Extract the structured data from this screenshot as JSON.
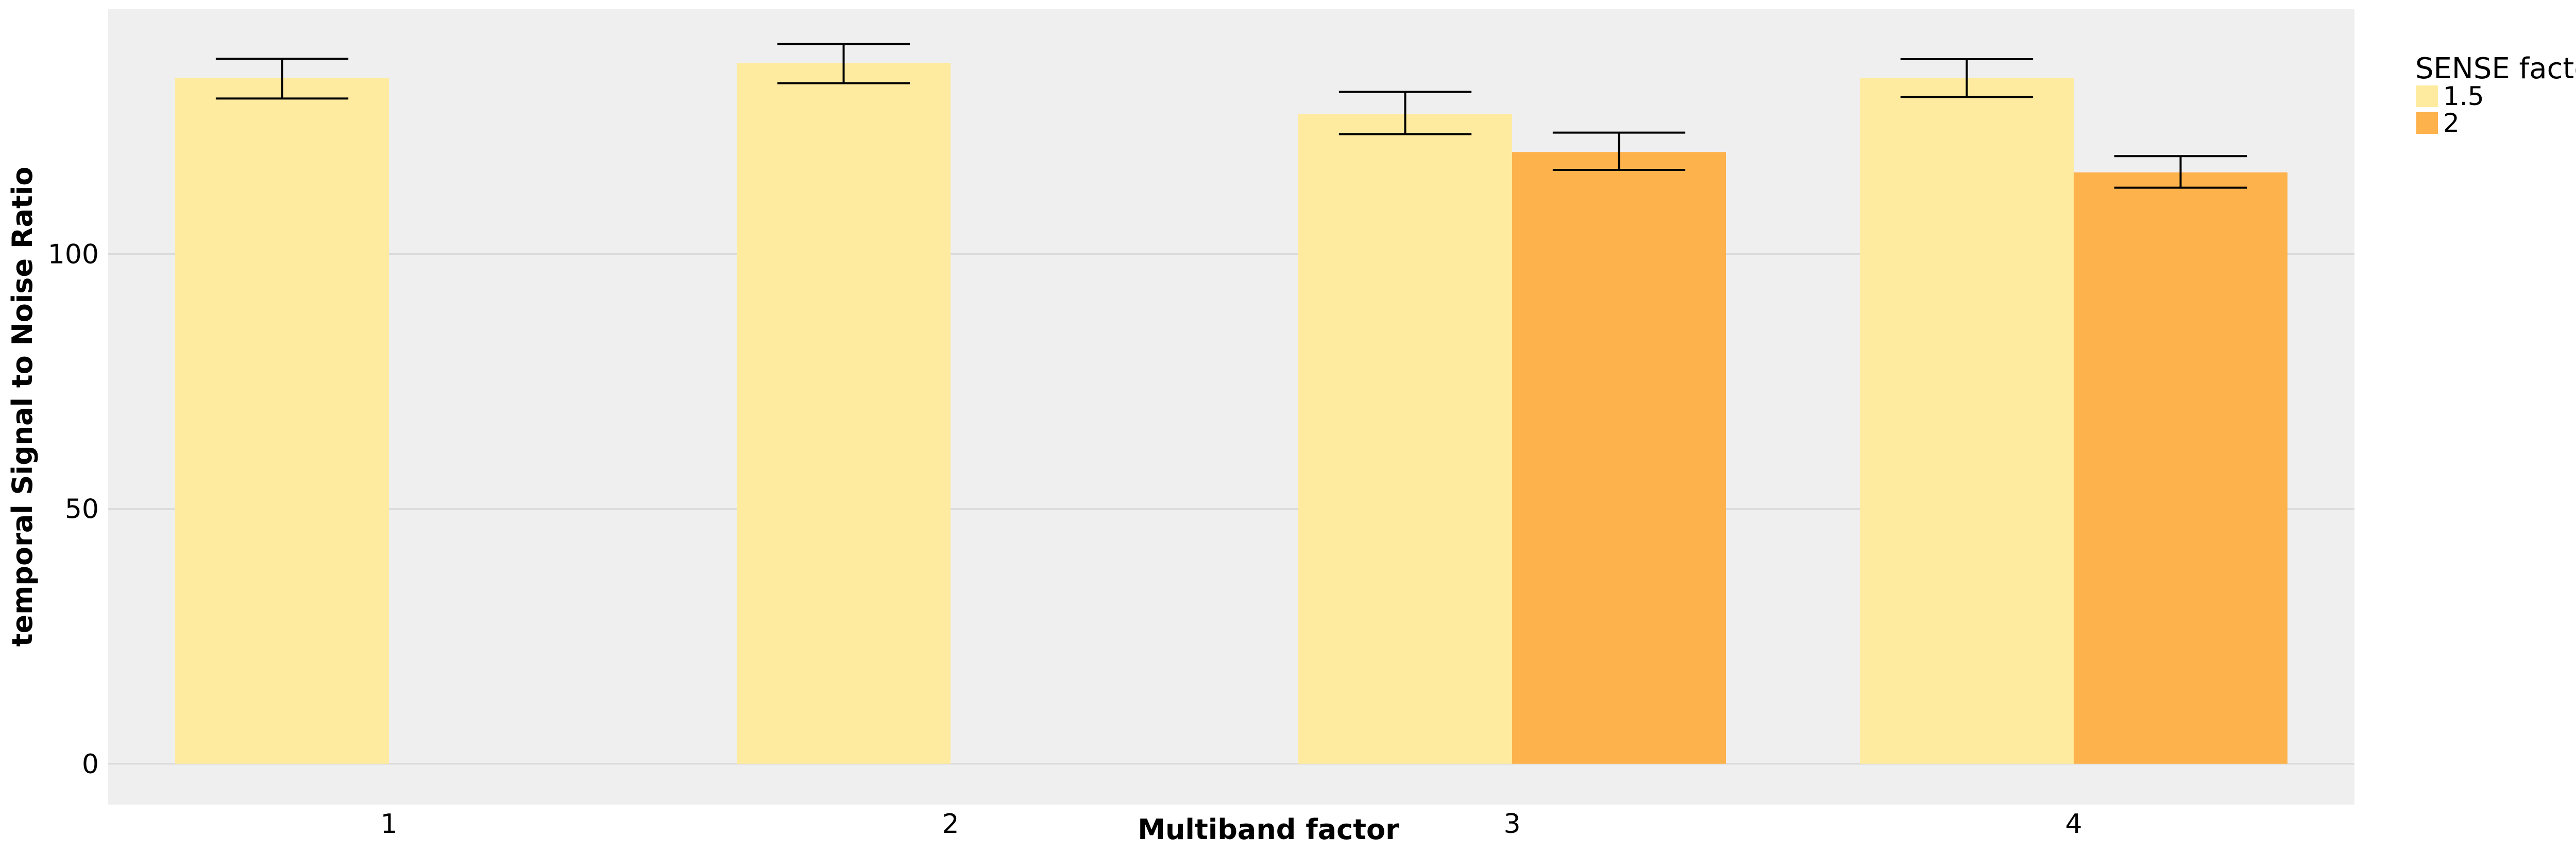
{
  "chart_data": {
    "type": "bar",
    "xlabel": "Multiband factor",
    "ylabel": "temporal Signal to Noise Ratio",
    "categories": [
      "1",
      "2",
      "3",
      "4"
    ],
    "yticks": [
      0,
      50,
      100
    ],
    "ylim": [
      -8,
      148
    ],
    "grid": true,
    "legend": {
      "title": "SENSE factor",
      "placement": "right"
    },
    "series": [
      {
        "name": "1.5",
        "color": "#FEEB9F",
        "values": [
          134.5,
          137.5,
          127.5,
          134.5
        ],
        "err_low": [
          130.5,
          133.5,
          123.5,
          130.8
        ],
        "err_high": [
          138.3,
          141.2,
          131.8,
          138.2
        ]
      },
      {
        "name": "2",
        "color": "#FEB24C",
        "values": [
          null,
          null,
          120,
          116
        ],
        "err_low": [
          null,
          null,
          116.5,
          113
        ],
        "err_high": [
          null,
          null,
          123.8,
          119.2
        ]
      }
    ],
    "panel_background": "#EFEFEF",
    "grid_color": "#D9D9D9"
  }
}
